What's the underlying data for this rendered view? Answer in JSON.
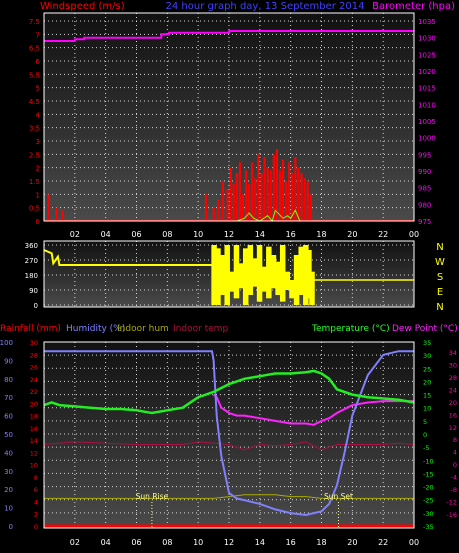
{
  "colors": {
    "bg": "#000000",
    "plot_bg_top": "#111111",
    "plot_bg_bottom": "#4a4a4a",
    "grid": "#d8d8d8",
    "axis": "#ffffff",
    "wind": "#ff0000",
    "gust": "#7fff00",
    "barometer": "#ff00ff",
    "direction": "#ffff00",
    "rain": "#ff0000",
    "humidity": "#8080ff",
    "inhum": "#aaaa00",
    "intemp": "#aa1040",
    "temp": "#22ee22",
    "dew": "#ff22ff",
    "hum_axis": "#4040ff",
    "temp_axis": "#00ff00",
    "dew_axis": "#ff00aa",
    "sun": "#ffff80"
  },
  "chart_data": [
    {
      "id": "wind-baro",
      "type": "bar",
      "title": "24 hour graph day, 13 September 2014",
      "left_axis_label": "Windspeed (m/s)",
      "right_axis_label": "Barometer (hpa)",
      "x_ticks": [
        "02",
        "04",
        "06",
        "08",
        "10",
        "12",
        "14",
        "16",
        "18",
        "20",
        "22",
        "00"
      ],
      "wind_ylim": [
        0,
        7.5
      ],
      "wind_ticks": [
        "0",
        "0.5",
        "1",
        "1.5",
        "2",
        "2.5",
        "3",
        "3.5",
        "4",
        "4.5",
        "5",
        "5.5",
        "6",
        "6.5",
        "7",
        "7.5"
      ],
      "baro_ylim": [
        975,
        1035
      ],
      "baro_ticks": [
        "975",
        "980",
        "985",
        "990",
        "995",
        "1000",
        "1005",
        "1010",
        "1015",
        "1020",
        "1025",
        "1030",
        "1035"
      ],
      "barometer": {
        "x": [
          0,
          2.0,
          2.01,
          2.6,
          2.61,
          7.6,
          7.61,
          8.1,
          8.11,
          12.0,
          12.01,
          21.5,
          21.51,
          24
        ],
        "y": [
          1029,
          1029,
          1029.5,
          1029.5,
          1030,
          1030,
          1031,
          1031,
          1031.5,
          1031.5,
          1032,
          1032,
          1032,
          1032
        ]
      },
      "wind_bars": {
        "x": [
          0.3,
          0.8,
          1.2,
          10.5,
          11.0,
          11.3,
          11.6,
          11.9,
          12.1,
          12.3,
          12.5,
          12.7,
          12.9,
          13.1,
          13.3,
          13.5,
          13.7,
          13.9,
          14.1,
          14.3,
          14.5,
          14.7,
          14.9,
          15.1,
          15.3,
          15.5,
          15.7,
          15.9,
          16.1,
          16.3,
          16.5,
          16.7,
          16.9,
          17.1,
          17.3
        ],
        "y": [
          1.0,
          0.5,
          0.4,
          1.0,
          0.5,
          0.8,
          1.5,
          1.2,
          2.0,
          1.4,
          1.8,
          2.2,
          1.0,
          1.9,
          1.4,
          2.2,
          1.6,
          2.5,
          1.8,
          2.4,
          2.0,
          1.9,
          2.5,
          2.7,
          1.9,
          2.3,
          1.5,
          2.2,
          1.8,
          2.4,
          2.0,
          1.8,
          1.6,
          1.5,
          1.0
        ]
      },
      "gust_line": {
        "x": [
          11.5,
          12.5,
          13.0,
          13.3,
          13.6,
          14.0,
          14.5,
          14.8,
          15.0,
          15.5,
          15.8,
          16.0,
          16.3,
          16.6,
          17.0
        ],
        "y": [
          0,
          0,
          0.1,
          0.3,
          0.1,
          0.0,
          0.2,
          0.0,
          0.4,
          0.1,
          0.2,
          0.1,
          0.4,
          0.0,
          0.0
        ]
      }
    },
    {
      "id": "direction",
      "type": "bar",
      "y_ticks": [
        "0",
        "90",
        "180",
        "270",
        "360"
      ],
      "compass": [
        "N",
        "W",
        "S",
        "E",
        "N"
      ],
      "ylim": [
        0,
        360
      ],
      "line": {
        "x": [
          0,
          0.5,
          0.6,
          0.9,
          1.0,
          11.0
        ],
        "y": [
          330,
          310,
          250,
          290,
          240,
          240
        ]
      },
      "bars": {
        "x": [
          11.05,
          11.3,
          11.6,
          11.9,
          12.2,
          12.5,
          12.8,
          13.1,
          13.4,
          13.7,
          14.0,
          14.3,
          14.6,
          14.9,
          15.2,
          15.5,
          15.8,
          16.1,
          16.4,
          16.7,
          17.0,
          17.2,
          17.4
        ],
        "y": [
          360,
          340,
          300,
          360,
          200,
          360,
          250,
          340,
          360,
          280,
          360,
          230,
          350,
          300,
          260,
          360,
          200,
          150,
          300,
          350,
          360,
          330,
          200
        ],
        "base": [
          0,
          0,
          60,
          0,
          80,
          40,
          100,
          0,
          60,
          110,
          20,
          80,
          40,
          100,
          60,
          20,
          90,
          40,
          0,
          60,
          0,
          40,
          0
        ]
      },
      "line_after": {
        "x": [
          17.5,
          24
        ],
        "y": [
          150,
          150
        ]
      }
    },
    {
      "id": "temp-hum",
      "type": "line",
      "rain_label": "Rainfall (mm)",
      "hum_label": "Humidity (%)",
      "inhum_label": "Indoor hum",
      "intemp_label": "Indoor temp",
      "temp_label": "Temperature (°C)",
      "dew_label": "Dew Point (°C)",
      "x_ticks": [
        "02",
        "04",
        "06",
        "08",
        "10",
        "12",
        "14",
        "16",
        "18",
        "20",
        "22",
        "00"
      ],
      "hum_ticks": [
        "0",
        "10",
        "20",
        "30",
        "40",
        "50",
        "60",
        "70",
        "80",
        "90",
        "100"
      ],
      "rain_ticks": [
        "0",
        "2",
        "4",
        "6",
        "8",
        "10",
        "12",
        "14",
        "16",
        "18",
        "20",
        "22",
        "24",
        "26",
        "28",
        "30"
      ],
      "temp_ticks": [
        "-35",
        "-30",
        "-25",
        "-20",
        "-15",
        "-10",
        "-5",
        "0",
        "5",
        "10",
        "15",
        "20",
        "25",
        "30",
        "35"
      ],
      "dew_ticks": [
        "-16",
        "-12",
        "-8",
        "-4",
        "0",
        "4",
        "8",
        "12",
        "16",
        "20",
        "24",
        "28",
        "30",
        "34"
      ],
      "temp_ylim": [
        -35,
        35
      ],
      "sunrise_label": "Sun Rise",
      "sunset_label": "Sun Set",
      "sunrise_x": 7.0,
      "sunset_x": 19.1,
      "temperature": {
        "x": [
          0,
          0.5,
          1,
          2,
          3,
          4,
          5,
          6,
          6.5,
          7,
          8,
          9,
          10,
          11,
          12,
          13,
          14,
          15,
          16,
          17,
          17.5,
          18,
          18.5,
          19,
          20,
          21,
          22,
          23,
          24
        ],
        "y": [
          11,
          12,
          11,
          10.5,
          10,
          9.5,
          9.5,
          9,
          8.5,
          8,
          9,
          10,
          14,
          16,
          19,
          21,
          22,
          23,
          23,
          23.5,
          24,
          23,
          21,
          17,
          15,
          14,
          13.5,
          13,
          12
        ]
      },
      "dewpoint": {
        "x": [
          11.0,
          11.2,
          11.5,
          12,
          12.5,
          13,
          14,
          15,
          16,
          17,
          17.5,
          18,
          18.5,
          19,
          20,
          21,
          22,
          23,
          24
        ],
        "y": [
          15,
          14,
          10,
          8,
          7,
          7,
          6,
          5,
          4,
          4,
          3.5,
          5,
          6,
          8,
          11,
          12,
          12.5,
          12.5,
          12.5
        ]
      },
      "humidity": {
        "x": [
          0,
          10.9,
          11.0,
          11.2,
          11.5,
          12,
          12.5,
          13,
          14,
          15,
          16,
          17,
          17.5,
          18,
          18.5,
          19,
          19.5,
          20,
          21,
          22,
          23,
          24
        ],
        "y": [
          95,
          95,
          90,
          60,
          38,
          18,
          15,
          14,
          12,
          9,
          7,
          6,
          7,
          8,
          12,
          22,
          40,
          60,
          82,
          93,
          95,
          95
        ]
      },
      "indoor_temp": {
        "x": [
          0,
          2,
          4,
          6,
          8,
          9,
          10,
          11,
          12,
          13,
          14,
          15,
          16,
          17,
          18,
          19,
          20,
          21,
          22,
          23,
          24
        ],
        "y": [
          -4,
          -3,
          -3.5,
          -4,
          -4,
          -4,
          -3,
          -3.5,
          -4,
          -6,
          -4,
          -4.5,
          -4,
          -3,
          -6,
          -4,
          -4,
          -4,
          -4,
          -3.5,
          -4
        ]
      },
      "indoor_hum": {
        "x": [
          0,
          2,
          4,
          6,
          8,
          10,
          11,
          12,
          13,
          14,
          15,
          16,
          17,
          18,
          19,
          20,
          21,
          22,
          23,
          24
        ],
        "y": [
          15,
          15,
          15,
          15,
          15,
          15,
          15,
          16,
          17,
          17,
          17,
          16,
          16,
          15,
          15,
          15,
          15,
          15,
          15,
          15
        ]
      },
      "rainfall": {
        "x": [
          0,
          24
        ],
        "y": [
          0,
          0
        ]
      }
    }
  ]
}
